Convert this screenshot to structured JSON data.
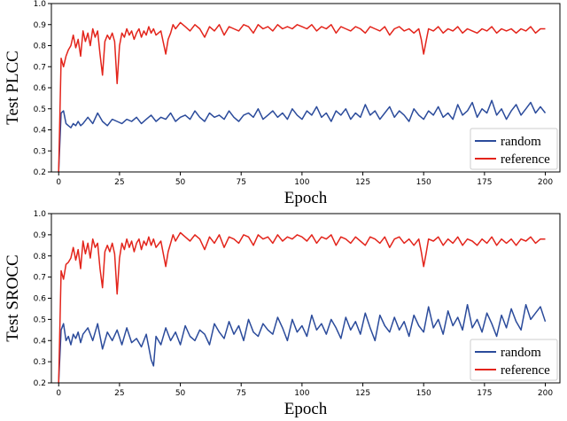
{
  "chart_data": [
    {
      "type": "line",
      "xlabel": "Epoch",
      "ylabel": "Test PLCC",
      "xlim": [
        -3,
        206
      ],
      "ylim": [
        0.2,
        1.0
      ],
      "x_ticks": [
        0,
        25,
        50,
        75,
        100,
        125,
        150,
        175,
        200
      ],
      "y_ticks": [
        0.2,
        0.3,
        0.4,
        0.5,
        0.6,
        0.7,
        0.8,
        0.9,
        1.0
      ],
      "grid": false,
      "legend_position": "lower-right",
      "series": [
        {
          "name": "random",
          "color": "#2b4b9b",
          "x": [
            0,
            1,
            2,
            3,
            4,
            5,
            6,
            7,
            8,
            9,
            10,
            12,
            14,
            16,
            18,
            20,
            22,
            24,
            26,
            28,
            30,
            32,
            34,
            36,
            38,
            40,
            42,
            44,
            46,
            48,
            50,
            52,
            54,
            56,
            58,
            60,
            62,
            64,
            66,
            68,
            70,
            72,
            74,
            76,
            78,
            80,
            82,
            84,
            86,
            88,
            90,
            92,
            94,
            96,
            98,
            100,
            102,
            104,
            106,
            108,
            110,
            112,
            114,
            116,
            118,
            120,
            122,
            124,
            126,
            128,
            130,
            132,
            134,
            136,
            138,
            140,
            142,
            144,
            146,
            148,
            150,
            152,
            154,
            156,
            158,
            160,
            162,
            164,
            166,
            168,
            170,
            172,
            174,
            176,
            178,
            180,
            182,
            184,
            186,
            188,
            190,
            192,
            194,
            196,
            198,
            200
          ],
          "y": [
            0.2,
            0.48,
            0.49,
            0.43,
            0.42,
            0.41,
            0.43,
            0.42,
            0.44,
            0.42,
            0.43,
            0.46,
            0.43,
            0.48,
            0.44,
            0.42,
            0.45,
            0.44,
            0.43,
            0.45,
            0.44,
            0.46,
            0.43,
            0.45,
            0.47,
            0.44,
            0.46,
            0.45,
            0.48,
            0.44,
            0.46,
            0.47,
            0.45,
            0.49,
            0.46,
            0.44,
            0.48,
            0.46,
            0.47,
            0.45,
            0.49,
            0.46,
            0.44,
            0.47,
            0.48,
            0.46,
            0.5,
            0.45,
            0.47,
            0.49,
            0.46,
            0.48,
            0.45,
            0.5,
            0.47,
            0.45,
            0.49,
            0.47,
            0.51,
            0.46,
            0.48,
            0.44,
            0.49,
            0.47,
            0.5,
            0.45,
            0.48,
            0.46,
            0.52,
            0.47,
            0.49,
            0.45,
            0.48,
            0.51,
            0.46,
            0.49,
            0.47,
            0.44,
            0.5,
            0.47,
            0.45,
            0.49,
            0.47,
            0.51,
            0.46,
            0.48,
            0.45,
            0.52,
            0.47,
            0.49,
            0.53,
            0.46,
            0.5,
            0.48,
            0.54,
            0.47,
            0.5,
            0.45,
            0.49,
            0.52,
            0.47,
            0.5,
            0.53,
            0.48,
            0.51,
            0.48
          ]
        },
        {
          "name": "reference",
          "color": "#e3241b",
          "x": [
            0,
            1,
            2,
            3,
            4,
            5,
            6,
            7,
            8,
            9,
            10,
            11,
            12,
            13,
            14,
            15,
            16,
            17,
            18,
            19,
            20,
            21,
            22,
            23,
            24,
            25,
            26,
            27,
            28,
            29,
            30,
            31,
            32,
            33,
            34,
            35,
            36,
            37,
            38,
            39,
            40,
            42,
            44,
            45,
            46,
            47,
            48,
            50,
            52,
            54,
            56,
            58,
            60,
            62,
            64,
            66,
            68,
            70,
            72,
            74,
            76,
            78,
            80,
            82,
            84,
            86,
            88,
            90,
            92,
            94,
            96,
            98,
            100,
            102,
            104,
            106,
            108,
            110,
            112,
            114,
            116,
            118,
            120,
            122,
            124,
            126,
            128,
            130,
            132,
            134,
            136,
            138,
            140,
            142,
            144,
            146,
            148,
            149,
            150,
            151,
            152,
            154,
            156,
            158,
            160,
            162,
            164,
            166,
            168,
            170,
            172,
            174,
            176,
            178,
            180,
            182,
            184,
            186,
            188,
            190,
            192,
            194,
            196,
            198,
            200
          ],
          "y": [
            0.2,
            0.74,
            0.7,
            0.75,
            0.78,
            0.8,
            0.85,
            0.79,
            0.83,
            0.75,
            0.87,
            0.82,
            0.86,
            0.8,
            0.88,
            0.84,
            0.87,
            0.76,
            0.66,
            0.82,
            0.85,
            0.83,
            0.86,
            0.82,
            0.62,
            0.8,
            0.86,
            0.84,
            0.88,
            0.85,
            0.87,
            0.83,
            0.86,
            0.88,
            0.84,
            0.87,
            0.85,
            0.89,
            0.86,
            0.88,
            0.85,
            0.87,
            0.76,
            0.83,
            0.86,
            0.9,
            0.88,
            0.91,
            0.89,
            0.87,
            0.9,
            0.88,
            0.84,
            0.89,
            0.87,
            0.9,
            0.85,
            0.89,
            0.88,
            0.87,
            0.9,
            0.89,
            0.86,
            0.9,
            0.88,
            0.89,
            0.87,
            0.9,
            0.88,
            0.89,
            0.88,
            0.9,
            0.89,
            0.88,
            0.9,
            0.87,
            0.89,
            0.88,
            0.9,
            0.86,
            0.89,
            0.88,
            0.87,
            0.89,
            0.88,
            0.86,
            0.89,
            0.88,
            0.87,
            0.89,
            0.85,
            0.88,
            0.89,
            0.87,
            0.88,
            0.86,
            0.88,
            0.83,
            0.76,
            0.82,
            0.88,
            0.87,
            0.89,
            0.86,
            0.88,
            0.87,
            0.89,
            0.86,
            0.88,
            0.87,
            0.86,
            0.88,
            0.87,
            0.89,
            0.86,
            0.88,
            0.87,
            0.88,
            0.86,
            0.88,
            0.87,
            0.89,
            0.86,
            0.88,
            0.88
          ]
        }
      ]
    },
    {
      "type": "line",
      "xlabel": "Epoch",
      "ylabel": "Test SROCC",
      "xlim": [
        -3,
        206
      ],
      "ylim": [
        0.2,
        1.0
      ],
      "x_ticks": [
        0,
        25,
        50,
        75,
        100,
        125,
        150,
        175,
        200
      ],
      "y_ticks": [
        0.2,
        0.3,
        0.4,
        0.5,
        0.6,
        0.7,
        0.8,
        0.9,
        1.0
      ],
      "grid": false,
      "legend_position": "lower-right",
      "series": [
        {
          "name": "random",
          "color": "#2b4b9b",
          "x": [
            0,
            1,
            2,
            3,
            4,
            5,
            6,
            7,
            8,
            9,
            10,
            12,
            14,
            16,
            18,
            20,
            22,
            24,
            26,
            28,
            30,
            32,
            34,
            36,
            38,
            39,
            40,
            42,
            44,
            46,
            48,
            50,
            52,
            54,
            56,
            58,
            60,
            62,
            64,
            66,
            68,
            70,
            72,
            74,
            76,
            78,
            80,
            82,
            84,
            86,
            88,
            90,
            92,
            94,
            96,
            98,
            100,
            102,
            104,
            106,
            108,
            110,
            112,
            114,
            116,
            118,
            120,
            122,
            124,
            126,
            128,
            130,
            132,
            134,
            136,
            138,
            140,
            142,
            144,
            146,
            148,
            150,
            152,
            154,
            156,
            158,
            160,
            162,
            164,
            166,
            168,
            170,
            172,
            174,
            176,
            178,
            180,
            182,
            184,
            186,
            188,
            190,
            192,
            194,
            196,
            198,
            200
          ],
          "y": [
            0.2,
            0.45,
            0.48,
            0.4,
            0.42,
            0.38,
            0.43,
            0.41,
            0.44,
            0.39,
            0.43,
            0.46,
            0.4,
            0.48,
            0.36,
            0.44,
            0.4,
            0.45,
            0.38,
            0.46,
            0.39,
            0.41,
            0.37,
            0.43,
            0.31,
            0.28,
            0.42,
            0.38,
            0.46,
            0.4,
            0.44,
            0.38,
            0.47,
            0.42,
            0.4,
            0.45,
            0.43,
            0.38,
            0.48,
            0.44,
            0.41,
            0.49,
            0.43,
            0.47,
            0.4,
            0.5,
            0.44,
            0.42,
            0.48,
            0.45,
            0.43,
            0.51,
            0.46,
            0.4,
            0.5,
            0.44,
            0.47,
            0.42,
            0.52,
            0.45,
            0.48,
            0.43,
            0.5,
            0.46,
            0.41,
            0.51,
            0.45,
            0.49,
            0.43,
            0.53,
            0.46,
            0.4,
            0.52,
            0.47,
            0.44,
            0.51,
            0.45,
            0.49,
            0.42,
            0.52,
            0.47,
            0.44,
            0.56,
            0.46,
            0.5,
            0.43,
            0.54,
            0.47,
            0.51,
            0.45,
            0.57,
            0.46,
            0.5,
            0.44,
            0.53,
            0.48,
            0.42,
            0.52,
            0.46,
            0.55,
            0.49,
            0.45,
            0.57,
            0.5,
            0.53,
            0.56,
            0.49
          ]
        },
        {
          "name": "reference",
          "color": "#e3241b",
          "x": [
            0,
            1,
            2,
            3,
            4,
            5,
            6,
            7,
            8,
            9,
            10,
            11,
            12,
            13,
            14,
            15,
            16,
            17,
            18,
            19,
            20,
            21,
            22,
            23,
            24,
            25,
            26,
            27,
            28,
            29,
            30,
            31,
            32,
            33,
            34,
            35,
            36,
            37,
            38,
            39,
            40,
            42,
            44,
            45,
            46,
            47,
            48,
            50,
            52,
            54,
            56,
            58,
            60,
            62,
            64,
            66,
            68,
            70,
            72,
            74,
            76,
            78,
            80,
            82,
            84,
            86,
            88,
            90,
            92,
            94,
            96,
            98,
            100,
            102,
            104,
            106,
            108,
            110,
            112,
            114,
            116,
            118,
            120,
            122,
            124,
            126,
            128,
            130,
            132,
            134,
            136,
            138,
            140,
            142,
            144,
            146,
            148,
            149,
            150,
            151,
            152,
            154,
            156,
            158,
            160,
            162,
            164,
            166,
            168,
            170,
            172,
            174,
            176,
            178,
            180,
            182,
            184,
            186,
            188,
            190,
            192,
            194,
            196,
            198,
            200
          ],
          "y": [
            0.2,
            0.73,
            0.69,
            0.76,
            0.77,
            0.79,
            0.84,
            0.78,
            0.83,
            0.74,
            0.87,
            0.81,
            0.86,
            0.79,
            0.88,
            0.84,
            0.86,
            0.74,
            0.65,
            0.82,
            0.85,
            0.82,
            0.86,
            0.81,
            0.62,
            0.79,
            0.86,
            0.83,
            0.88,
            0.84,
            0.87,
            0.82,
            0.86,
            0.88,
            0.83,
            0.87,
            0.85,
            0.89,
            0.85,
            0.88,
            0.84,
            0.87,
            0.75,
            0.82,
            0.86,
            0.9,
            0.87,
            0.91,
            0.89,
            0.87,
            0.9,
            0.88,
            0.83,
            0.89,
            0.86,
            0.9,
            0.84,
            0.89,
            0.88,
            0.86,
            0.9,
            0.89,
            0.85,
            0.9,
            0.88,
            0.89,
            0.86,
            0.9,
            0.87,
            0.89,
            0.88,
            0.9,
            0.89,
            0.87,
            0.9,
            0.86,
            0.89,
            0.88,
            0.9,
            0.85,
            0.89,
            0.88,
            0.86,
            0.89,
            0.87,
            0.85,
            0.89,
            0.88,
            0.86,
            0.89,
            0.84,
            0.88,
            0.89,
            0.86,
            0.88,
            0.85,
            0.88,
            0.82,
            0.75,
            0.81,
            0.88,
            0.87,
            0.89,
            0.85,
            0.88,
            0.86,
            0.89,
            0.85,
            0.88,
            0.87,
            0.85,
            0.88,
            0.86,
            0.89,
            0.85,
            0.88,
            0.86,
            0.88,
            0.85,
            0.88,
            0.87,
            0.89,
            0.86,
            0.88,
            0.88
          ]
        }
      ]
    }
  ]
}
